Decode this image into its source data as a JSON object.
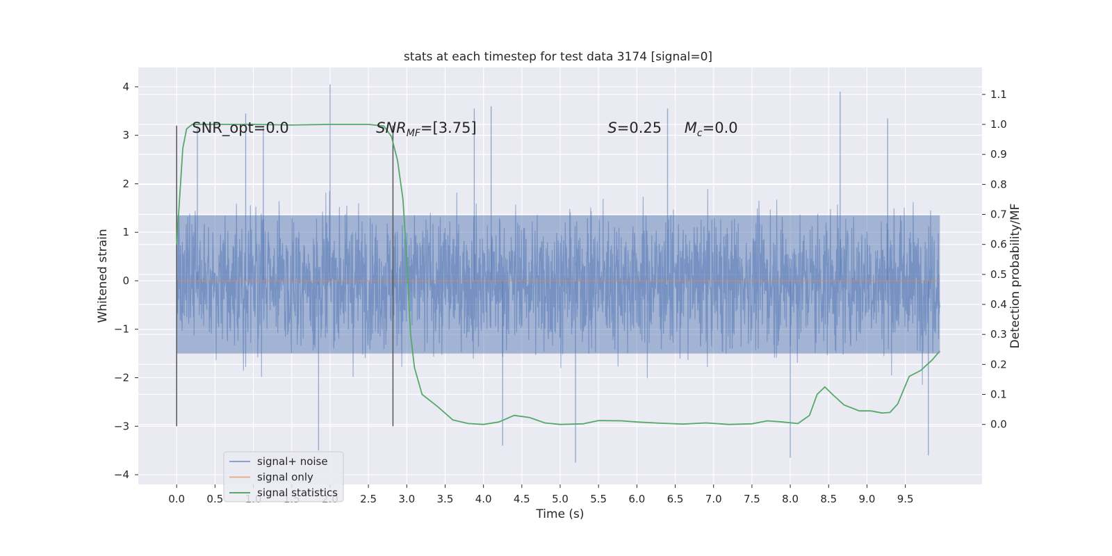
{
  "chart_data": {
    "type": "line",
    "title": "stats at each timestep for test data 3174 [signal=0]",
    "xlabel": "Time (s)",
    "ylabel_left": "Whitened strain",
    "ylabel_right": "Detection probability/MF",
    "xlim": [
      -0.5,
      10.5
    ],
    "ylim_left": [
      -4.2,
      4.4
    ],
    "ylim_right": [
      -0.2,
      1.19
    ],
    "x_ticks": [
      0.0,
      0.5,
      1.0,
      1.5,
      2.0,
      2.5,
      3.0,
      3.5,
      4.0,
      4.5,
      5.0,
      5.5,
      6.0,
      6.5,
      7.0,
      7.5,
      8.0,
      8.5,
      9.0,
      9.5
    ],
    "x_tick_labels": [
      "0.0",
      "0.5",
      "1.0",
      "1.5",
      "2.0",
      "2.5",
      "3.0",
      "3.5",
      "4.0",
      "4.5",
      "5.0",
      "5.5",
      "6.0",
      "6.5",
      "7.0",
      "7.5",
      "8.0",
      "8.5",
      "9.0",
      "9.5"
    ],
    "y_left_ticks": [
      -4,
      -3,
      -2,
      -1,
      0,
      1,
      2,
      3,
      4
    ],
    "y_left_tick_labels": [
      "−4",
      "−3",
      "−2",
      "−1",
      "0",
      "1",
      "2",
      "3",
      "4"
    ],
    "y_right_ticks": [
      0.0,
      0.1,
      0.2,
      0.3,
      0.4,
      0.5,
      0.6,
      0.7,
      0.8,
      0.9,
      1.0,
      1.1
    ],
    "y_right_tick_labels": [
      "0.0",
      "0.1",
      "0.2",
      "0.3",
      "0.4",
      "0.5",
      "0.6",
      "0.7",
      "0.8",
      "0.9",
      "1.0",
      "1.1"
    ],
    "grid": true,
    "legend_position": "lower-left",
    "colors": {
      "background": "#eaeaf2",
      "noise": "#4c72b0",
      "signal_only": "#dd8452",
      "statistics": "#55a868",
      "markers": "#555555"
    },
    "series": [
      {
        "name": "signal+ noise",
        "axis": "left",
        "style": "dense noise trace",
        "x_range": [
          0.0,
          9.95
        ],
        "core_band": [
          -1.5,
          1.35
        ],
        "typical_envelope": [
          -2.5,
          2.5
        ],
        "spikes": [
          {
            "x": 0.27,
            "y": 3.15
          },
          {
            "x": 0.9,
            "y": 3.45
          },
          {
            "x": 1.13,
            "y": 3.15
          },
          {
            "x": 2.0,
            "y": 4.05
          },
          {
            "x": 3.88,
            "y": 3.55
          },
          {
            "x": 4.1,
            "y": 3.6
          },
          {
            "x": 6.4,
            "y": 3.55
          },
          {
            "x": 8.65,
            "y": 3.9
          },
          {
            "x": 9.27,
            "y": 3.35
          },
          {
            "x": 4.25,
            "y": -3.4
          },
          {
            "x": 5.2,
            "y": -3.75
          },
          {
            "x": 8.0,
            "y": -3.65
          },
          {
            "x": 9.8,
            "y": -3.6
          },
          {
            "x": 1.85,
            "y": -3.5
          }
        ]
      },
      {
        "name": "signal only",
        "axis": "left",
        "x": [
          0.0,
          9.95
        ],
        "y": [
          0.0,
          0.0
        ]
      },
      {
        "name": "signal statistics",
        "axis": "right",
        "x": [
          0.0,
          0.08,
          0.13,
          0.2,
          0.3,
          0.5,
          1.0,
          1.5,
          2.0,
          2.5,
          2.7,
          2.8,
          2.88,
          2.95,
          3.0,
          3.05,
          3.1,
          3.2,
          3.4,
          3.6,
          3.8,
          4.0,
          4.2,
          4.4,
          4.6,
          4.8,
          5.0,
          5.3,
          5.5,
          5.8,
          6.0,
          6.3,
          6.6,
          6.9,
          7.2,
          7.5,
          7.7,
          7.9,
          8.1,
          8.25,
          8.35,
          8.45,
          8.55,
          8.7,
          8.9,
          9.05,
          9.2,
          9.3,
          9.4,
          9.55,
          9.7,
          9.85,
          9.95
        ],
        "y": [
          0.6,
          0.92,
          0.985,
          1.0,
          1.0,
          1.0,
          1.0,
          0.998,
          1.0,
          1.0,
          0.995,
          0.96,
          0.88,
          0.75,
          0.55,
          0.3,
          0.19,
          0.1,
          0.06,
          0.015,
          0.003,
          0.0,
          0.008,
          0.03,
          0.023,
          0.005,
          0.0,
          0.002,
          0.013,
          0.012,
          0.008,
          0.004,
          0.001,
          0.005,
          0.0,
          0.002,
          0.012,
          0.008,
          0.003,
          0.03,
          0.1,
          0.125,
          0.1,
          0.065,
          0.045,
          0.045,
          0.038,
          0.04,
          0.068,
          0.16,
          0.18,
          0.215,
          0.245
        ]
      }
    ],
    "vertical_markers": [
      {
        "x": 0.0,
        "y_range": [
          -3.0,
          3.2
        ]
      },
      {
        "x": 2.82,
        "y_range": [
          -3.0,
          3.2
        ]
      }
    ],
    "annotations": [
      {
        "text": "SNR_opt=0.0",
        "x": 0.2,
        "y": 3.15
      },
      {
        "text_parts": [
          "SNR",
          "MF",
          "=[3.75]"
        ],
        "x": 2.6,
        "y": 3.15
      },
      {
        "text_parts": [
          "S",
          "=0.25"
        ],
        "x": 5.62,
        "y": 3.15
      },
      {
        "text_parts": [
          "M",
          "c",
          "=0.0"
        ],
        "x": 6.62,
        "y": 3.15
      }
    ],
    "legend": [
      {
        "label": "signal+ noise"
      },
      {
        "label": "signal only"
      },
      {
        "label": "signal statistics"
      }
    ]
  }
}
